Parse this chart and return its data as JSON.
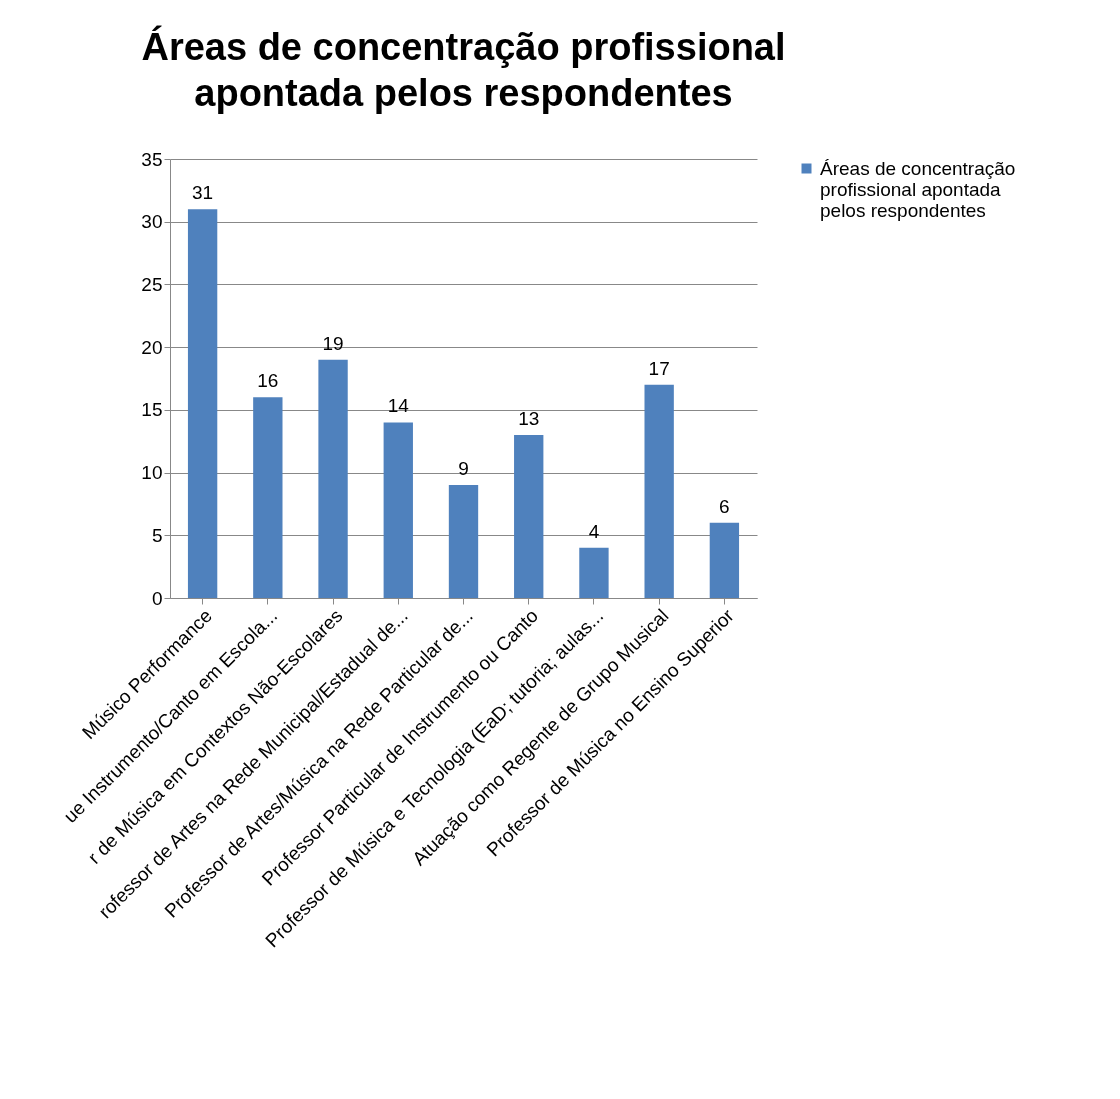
{
  "chart_data": {
    "type": "bar",
    "title": "Áreas de concentração profissional apontada pelos respondentes",
    "categories": [
      "Músico Performance",
      "ue Instrumento/Canto em Escola...",
      "r de Música em Contextos Não-Escolares",
      "rofessor de Artes na Rede Municipal/Estadual de...",
      "Professor de Artes/Música na Rede Particular de...",
      "Professor Particular de Instrumento ou Canto",
      "Professor de Música e Tecnologia (EaD; tutoria; aulas...",
      "Atuação como Regente de Grupo Musical",
      "Professor de Música no Ensino Superior"
    ],
    "series": [
      {
        "name": "Áreas de concentração profissional apontada pelos respondentes",
        "color": "#4f81bd",
        "values": [
          31,
          16,
          19,
          14,
          9,
          13,
          4,
          17,
          6
        ]
      }
    ],
    "ylim": [
      0,
      35
    ],
    "yticks": [
      0,
      5,
      10,
      15,
      20,
      25,
      30,
      35
    ],
    "grid": "y",
    "data_labels": true,
    "legend": "right"
  }
}
